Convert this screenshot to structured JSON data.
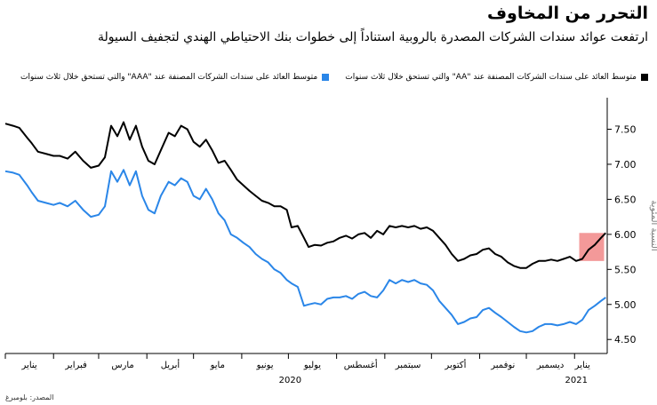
{
  "title": "التحرر من المخاوف",
  "subtitle": "ارتفعت عوائد سندات الشركات المصدرة بالروبية استناداً إلى خطوات بنك الاحتياطي الهندي لتجفيف السيولة",
  "source": "المصدر: بلومبرغ",
  "colors": {
    "aa": "#000000",
    "aaa": "#2a86e8",
    "highlight": "#f08080"
  },
  "chart_data": {
    "type": "line",
    "ylabel": "النسبة المئوية",
    "ylim": [
      4.3,
      7.95
    ],
    "yticks": [
      4.5,
      5.0,
      5.5,
      6.0,
      6.5,
      7.0,
      7.5
    ],
    "ytick_labels": [
      "4.50",
      "5.00",
      "5.50",
      "6.00",
      "6.50",
      "7.00",
      "7.50"
    ],
    "x_start": "2020-01-01",
    "x_end": "2021-01-22",
    "months": [
      {
        "label": "يناير",
        "date": "2020-01-01"
      },
      {
        "label": "فبراير",
        "date": "2020-02-01"
      },
      {
        "label": "مارس",
        "date": "2020-03-01"
      },
      {
        "label": "أبريل",
        "date": "2020-04-01"
      },
      {
        "label": "مايو",
        "date": "2020-05-01"
      },
      {
        "label": "يونيو",
        "date": "2020-06-01"
      },
      {
        "label": "يوليو",
        "date": "2020-07-01"
      },
      {
        "label": "أغسطس",
        "date": "2020-08-01"
      },
      {
        "label": "سبتمبر",
        "date": "2020-09-01"
      },
      {
        "label": "أكتوبر",
        "date": "2020-10-01"
      },
      {
        "label": "نوفمبر",
        "date": "2020-11-01"
      },
      {
        "label": "ديسمبر",
        "date": "2020-12-01"
      },
      {
        "label": "يناير",
        "date": "2021-01-01"
      }
    ],
    "year_labels": [
      {
        "label": "2020",
        "date": "2020-07-01"
      },
      {
        "label": "2021",
        "date": "2021-01-01"
      }
    ],
    "highlight": {
      "x_start": "2021-01-04",
      "x_end": "2021-01-20",
      "y_start": 5.62,
      "y_end": 6.02
    },
    "grid": false,
    "legend_position": "top",
    "series": [
      {
        "name": "متوسط العائد على سندات الشركات المصنفة عند \"AA\" والتي تستحق خلال ثلاث سنوات",
        "color": "#000000",
        "points": [
          [
            "2020-01-01",
            7.58
          ],
          [
            "2020-01-06",
            7.55
          ],
          [
            "2020-01-10",
            7.52
          ],
          [
            "2020-01-15",
            7.38
          ],
          [
            "2020-01-18",
            7.3
          ],
          [
            "2020-01-22",
            7.18
          ],
          [
            "2020-01-27",
            7.15
          ],
          [
            "2020-02-01",
            7.12
          ],
          [
            "2020-02-05",
            7.12
          ],
          [
            "2020-02-10",
            7.08
          ],
          [
            "2020-02-15",
            7.18
          ],
          [
            "2020-02-20",
            7.05
          ],
          [
            "2020-02-25",
            6.95
          ],
          [
            "2020-03-01",
            6.98
          ],
          [
            "2020-03-05",
            7.1
          ],
          [
            "2020-03-09",
            7.55
          ],
          [
            "2020-03-13",
            7.4
          ],
          [
            "2020-03-17",
            7.6
          ],
          [
            "2020-03-21",
            7.35
          ],
          [
            "2020-03-25",
            7.55
          ],
          [
            "2020-03-29",
            7.25
          ],
          [
            "2020-04-02",
            7.05
          ],
          [
            "2020-04-06",
            7.0
          ],
          [
            "2020-04-10",
            7.2
          ],
          [
            "2020-04-15",
            7.45
          ],
          [
            "2020-04-19",
            7.4
          ],
          [
            "2020-04-23",
            7.55
          ],
          [
            "2020-04-27",
            7.5
          ],
          [
            "2020-05-01",
            7.32
          ],
          [
            "2020-05-05",
            7.25
          ],
          [
            "2020-05-09",
            7.35
          ],
          [
            "2020-05-13",
            7.2
          ],
          [
            "2020-05-17",
            7.02
          ],
          [
            "2020-05-21",
            7.05
          ],
          [
            "2020-05-25",
            6.92
          ],
          [
            "2020-05-29",
            6.78
          ],
          [
            "2020-06-02",
            6.7
          ],
          [
            "2020-06-06",
            6.62
          ],
          [
            "2020-06-10",
            6.55
          ],
          [
            "2020-06-14",
            6.48
          ],
          [
            "2020-06-18",
            6.45
          ],
          [
            "2020-06-22",
            6.4
          ],
          [
            "2020-06-26",
            6.4
          ],
          [
            "2020-06-30",
            6.35
          ],
          [
            "2020-07-03",
            6.1
          ],
          [
            "2020-07-07",
            6.12
          ],
          [
            "2020-07-11",
            5.95
          ],
          [
            "2020-07-14",
            5.82
          ],
          [
            "2020-07-18",
            5.85
          ],
          [
            "2020-07-22",
            5.84
          ],
          [
            "2020-07-26",
            5.88
          ],
          [
            "2020-07-30",
            5.9
          ],
          [
            "2020-08-03",
            5.95
          ],
          [
            "2020-08-07",
            5.98
          ],
          [
            "2020-08-11",
            5.94
          ],
          [
            "2020-08-15",
            6.0
          ],
          [
            "2020-08-19",
            6.02
          ],
          [
            "2020-08-23",
            5.95
          ],
          [
            "2020-08-27",
            6.05
          ],
          [
            "2020-08-31",
            6.0
          ],
          [
            "2020-09-04",
            6.12
          ],
          [
            "2020-09-08",
            6.1
          ],
          [
            "2020-09-12",
            6.12
          ],
          [
            "2020-09-16",
            6.1
          ],
          [
            "2020-09-20",
            6.12
          ],
          [
            "2020-09-24",
            6.08
          ],
          [
            "2020-09-28",
            6.1
          ],
          [
            "2020-10-02",
            6.05
          ],
          [
            "2020-10-06",
            5.95
          ],
          [
            "2020-10-10",
            5.85
          ],
          [
            "2020-10-14",
            5.72
          ],
          [
            "2020-10-18",
            5.62
          ],
          [
            "2020-10-22",
            5.65
          ],
          [
            "2020-10-26",
            5.7
          ],
          [
            "2020-10-30",
            5.72
          ],
          [
            "2020-11-03",
            5.78
          ],
          [
            "2020-11-07",
            5.8
          ],
          [
            "2020-11-11",
            5.72
          ],
          [
            "2020-11-15",
            5.68
          ],
          [
            "2020-11-19",
            5.6
          ],
          [
            "2020-11-23",
            5.55
          ],
          [
            "2020-11-27",
            5.52
          ],
          [
            "2020-12-01",
            5.52
          ],
          [
            "2020-12-05",
            5.58
          ],
          [
            "2020-12-09",
            5.62
          ],
          [
            "2020-12-13",
            5.62
          ],
          [
            "2020-12-17",
            5.64
          ],
          [
            "2020-12-21",
            5.62
          ],
          [
            "2020-12-25",
            5.65
          ],
          [
            "2020-12-29",
            5.68
          ],
          [
            "2021-01-02",
            5.62
          ],
          [
            "2021-01-06",
            5.65
          ],
          [
            "2021-01-10",
            5.78
          ],
          [
            "2021-01-14",
            5.85
          ],
          [
            "2021-01-18",
            5.95
          ],
          [
            "2021-01-21",
            6.02
          ]
        ]
      },
      {
        "name": "متوسط العائد على سندات الشركات المصنفة عند \"AAA\" والتي تستحق خلال ثلاث سنوات",
        "color": "#2a86e8",
        "points": [
          [
            "2020-01-01",
            6.9
          ],
          [
            "2020-01-06",
            6.88
          ],
          [
            "2020-01-10",
            6.85
          ],
          [
            "2020-01-15",
            6.7
          ],
          [
            "2020-01-18",
            6.6
          ],
          [
            "2020-01-22",
            6.48
          ],
          [
            "2020-01-27",
            6.45
          ],
          [
            "2020-02-01",
            6.42
          ],
          [
            "2020-02-05",
            6.45
          ],
          [
            "2020-02-10",
            6.4
          ],
          [
            "2020-02-15",
            6.48
          ],
          [
            "2020-02-20",
            6.35
          ],
          [
            "2020-02-25",
            6.25
          ],
          [
            "2020-03-01",
            6.28
          ],
          [
            "2020-03-05",
            6.4
          ],
          [
            "2020-03-09",
            6.9
          ],
          [
            "2020-03-13",
            6.75
          ],
          [
            "2020-03-17",
            6.92
          ],
          [
            "2020-03-21",
            6.7
          ],
          [
            "2020-03-25",
            6.9
          ],
          [
            "2020-03-29",
            6.55
          ],
          [
            "2020-04-02",
            6.35
          ],
          [
            "2020-04-06",
            6.3
          ],
          [
            "2020-04-10",
            6.55
          ],
          [
            "2020-04-15",
            6.75
          ],
          [
            "2020-04-19",
            6.7
          ],
          [
            "2020-04-23",
            6.8
          ],
          [
            "2020-04-27",
            6.75
          ],
          [
            "2020-05-01",
            6.55
          ],
          [
            "2020-05-05",
            6.5
          ],
          [
            "2020-05-09",
            6.65
          ],
          [
            "2020-05-13",
            6.5
          ],
          [
            "2020-05-17",
            6.3
          ],
          [
            "2020-05-21",
            6.2
          ],
          [
            "2020-05-25",
            6.0
          ],
          [
            "2020-05-29",
            5.95
          ],
          [
            "2020-06-02",
            5.88
          ],
          [
            "2020-06-06",
            5.82
          ],
          [
            "2020-06-10",
            5.72
          ],
          [
            "2020-06-14",
            5.65
          ],
          [
            "2020-06-18",
            5.6
          ],
          [
            "2020-06-22",
            5.5
          ],
          [
            "2020-06-26",
            5.45
          ],
          [
            "2020-06-30",
            5.35
          ],
          [
            "2020-07-03",
            5.3
          ],
          [
            "2020-07-07",
            5.25
          ],
          [
            "2020-07-11",
            4.98
          ],
          [
            "2020-07-14",
            5.0
          ],
          [
            "2020-07-18",
            5.02
          ],
          [
            "2020-07-22",
            5.0
          ],
          [
            "2020-07-26",
            5.08
          ],
          [
            "2020-07-30",
            5.1
          ],
          [
            "2020-08-03",
            5.1
          ],
          [
            "2020-08-07",
            5.12
          ],
          [
            "2020-08-11",
            5.08
          ],
          [
            "2020-08-15",
            5.15
          ],
          [
            "2020-08-19",
            5.18
          ],
          [
            "2020-08-23",
            5.12
          ],
          [
            "2020-08-27",
            5.1
          ],
          [
            "2020-08-31",
            5.2
          ],
          [
            "2020-09-04",
            5.35
          ],
          [
            "2020-09-08",
            5.3
          ],
          [
            "2020-09-12",
            5.35
          ],
          [
            "2020-09-16",
            5.32
          ],
          [
            "2020-09-20",
            5.35
          ],
          [
            "2020-09-24",
            5.3
          ],
          [
            "2020-09-28",
            5.28
          ],
          [
            "2020-10-02",
            5.2
          ],
          [
            "2020-10-06",
            5.05
          ],
          [
            "2020-10-10",
            4.95
          ],
          [
            "2020-10-14",
            4.85
          ],
          [
            "2020-10-18",
            4.72
          ],
          [
            "2020-10-22",
            4.75
          ],
          [
            "2020-10-26",
            4.8
          ],
          [
            "2020-10-30",
            4.82
          ],
          [
            "2020-11-03",
            4.92
          ],
          [
            "2020-11-07",
            4.95
          ],
          [
            "2020-11-11",
            4.88
          ],
          [
            "2020-11-15",
            4.82
          ],
          [
            "2020-11-19",
            4.75
          ],
          [
            "2020-11-23",
            4.68
          ],
          [
            "2020-11-27",
            4.62
          ],
          [
            "2020-12-01",
            4.6
          ],
          [
            "2020-12-05",
            4.62
          ],
          [
            "2020-12-09",
            4.68
          ],
          [
            "2020-12-13",
            4.72
          ],
          [
            "2020-12-17",
            4.72
          ],
          [
            "2020-12-21",
            4.7
          ],
          [
            "2020-12-25",
            4.72
          ],
          [
            "2020-12-29",
            4.75
          ],
          [
            "2021-01-02",
            4.72
          ],
          [
            "2021-01-06",
            4.78
          ],
          [
            "2021-01-10",
            4.92
          ],
          [
            "2021-01-14",
            4.98
          ],
          [
            "2021-01-18",
            5.05
          ],
          [
            "2021-01-21",
            5.1
          ]
        ]
      }
    ]
  }
}
